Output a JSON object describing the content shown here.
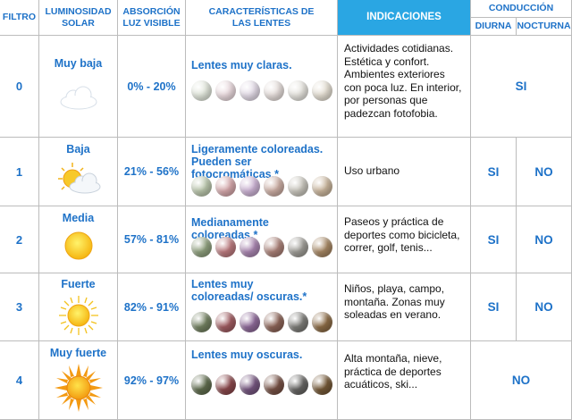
{
  "headers": {
    "filtro": "FILTRO",
    "luminosidad": "LUMINOSIDAD SOLAR",
    "absorcion": "ABSORCIÓN LUZ VISIBLE",
    "caracteristicas": "CARACTERÍSTICAS DE LAS LENTES",
    "indicaciones": "INDICACIONES",
    "conduccion": "CONDUCCIÓN",
    "diurna": "DIURNA",
    "nocturna": "NOCTURNA"
  },
  "rows": [
    {
      "filtro": "0",
      "luminosidad": "Muy baja",
      "icon": "cloud-icon",
      "absorcion": "0% - 20%",
      "caracteristicas": "Lentes muy claras.",
      "indicaciones": "Actividades cotidianas. Estética y confort. Ambientes exteriores con poca luz. En interior, por personas que padezcan fotofobia.",
      "conduccion": "SI",
      "lens_colors": [
        "#dfe4d9",
        "#e8d8dc",
        "#e1d9e5",
        "#e4dcd9",
        "#e4e2dc",
        "#e2dcd0"
      ]
    },
    {
      "filtro": "1",
      "luminosidad": "Baja",
      "icon": "sun-behind-cloud-icon",
      "absorcion": "21% - 56%",
      "caracteristicas": "Ligeramente coloreadas. Pueden ser fotocromáticas.*",
      "indicaciones": "Uso urbano",
      "diurna": "SI",
      "nocturna": "NO",
      "lens_colors": [
        "#b8c4aa",
        "#d3a6a9",
        "#c9b0d1",
        "#c9aba1",
        "#c6c3ba",
        "#c7b39a"
      ]
    },
    {
      "filtro": "2",
      "luminosidad": "Media",
      "icon": "sun-icon",
      "absorcion": "57% - 81%",
      "caracteristicas": "Medianamente coloreadas.*",
      "indicaciones": "Paseos y práctica de deportes como bicicleta, correr, golf, tenis...",
      "diurna": "SI",
      "nocturna": "NO",
      "lens_colors": [
        "#8d9e7c",
        "#b9797d",
        "#a784ae",
        "#a87f76",
        "#9c9a94",
        "#a48562"
      ]
    },
    {
      "filtro": "3",
      "luminosidad": "Fuerte",
      "icon": "sun-rays-icon",
      "absorcion": "82% - 91%",
      "caracteristicas": "Lentes muy coloreadas/ oscuras.*",
      "indicaciones": "Niños, playa, campo, montaña. Zonas muy soleadas en verano.",
      "diurna": "SI",
      "nocturna": "NO",
      "lens_colors": [
        "#717f5f",
        "#9e5b60",
        "#8c6897",
        "#8b6357",
        "#7b7a76",
        "#8a6a45"
      ]
    },
    {
      "filtro": "4",
      "luminosidad": "Muy fuerte",
      "icon": "strong-sun-icon",
      "absorcion": "92% - 97%",
      "caracteristicas": "Lentes muy oscuras.",
      "indicaciones": "Alta montaña, nieve, práctica de deportes acuáticos, ski...",
      "conduccion": "NO",
      "lens_colors": [
        "#5e6b4d",
        "#88474b",
        "#74557e",
        "#755044",
        "#656462",
        "#735736"
      ]
    }
  ],
  "colors": {
    "accent": "#1e72c8",
    "header_bg": "#2aa6e3",
    "grid": "#bcbcbc",
    "text": "#111111"
  }
}
